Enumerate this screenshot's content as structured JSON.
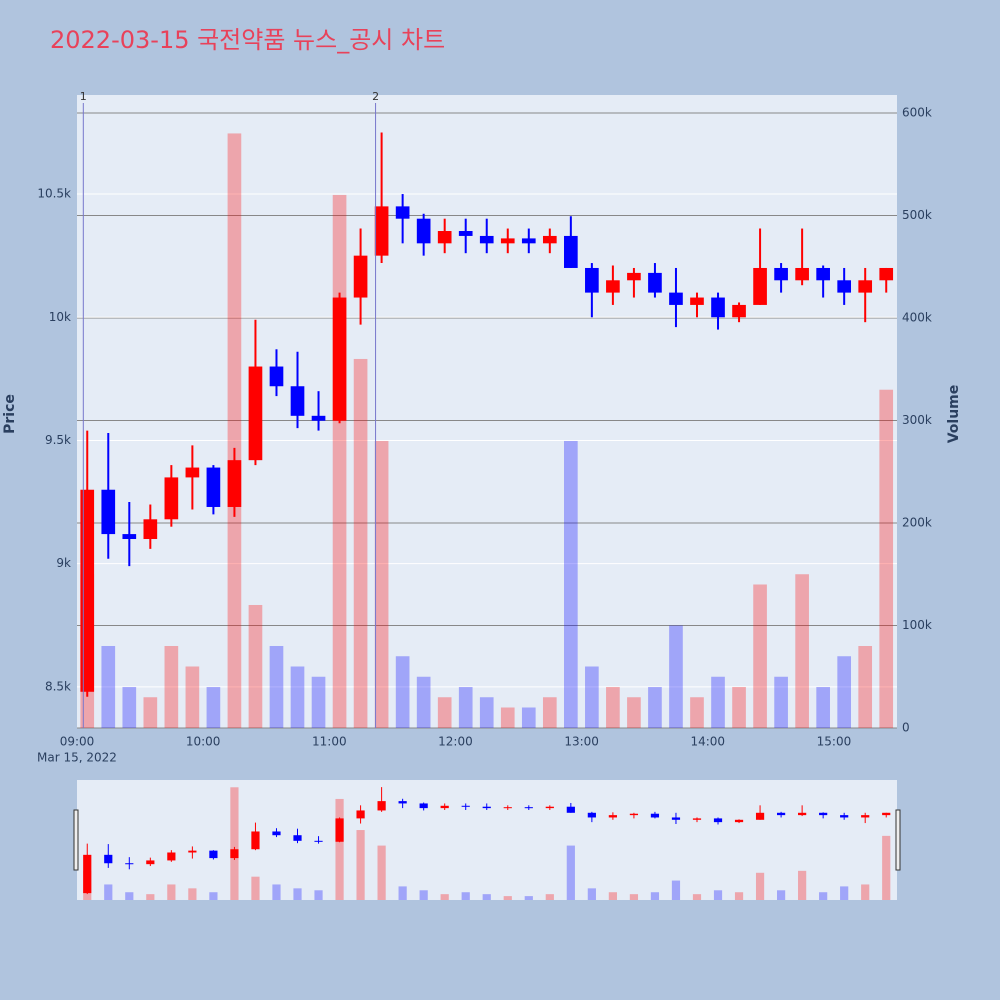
{
  "chart_data": {
    "type": "candlestick",
    "title": "2022-03-15 국전약품 뉴스_공시 차트",
    "x": [
      "09:00",
      "09:10",
      "09:20",
      "09:30",
      "09:40",
      "09:50",
      "10:00",
      "10:10",
      "10:20",
      "10:30",
      "10:40",
      "10:50",
      "11:00",
      "11:10",
      "11:20",
      "11:30",
      "11:40",
      "11:50",
      "12:00",
      "12:10",
      "12:20",
      "12:30",
      "12:40",
      "12:50",
      "13:00",
      "13:10",
      "13:20",
      "13:30",
      "13:40",
      "13:50",
      "14:00",
      "14:10",
      "14:20",
      "14:30",
      "14:40",
      "14:50",
      "15:00",
      "15:10",
      "15:20"
    ],
    "open": [
      8480,
      9300,
      9120,
      9100,
      9180,
      9350,
      9390,
      9230,
      9420,
      9800,
      9720,
      9600,
      9580,
      10080,
      10250,
      10450,
      10400,
      10300,
      10350,
      10330,
      10300,
      10320,
      10300,
      10330,
      10200,
      10100,
      10150,
      10180,
      10100,
      10050,
      10080,
      10000,
      10050,
      10200,
      10150,
      10200,
      10150,
      10100,
      10150
    ],
    "high": [
      9540,
      9530,
      9250,
      9240,
      9400,
      9480,
      9400,
      9470,
      9990,
      9870,
      9860,
      9700,
      10100,
      10360,
      10750,
      10500,
      10420,
      10400,
      10400,
      10400,
      10360,
      10360,
      10360,
      10410,
      10220,
      10210,
      10200,
      10220,
      10200,
      10100,
      10100,
      10060,
      10360,
      10220,
      10360,
      10210,
      10200,
      10200,
      10200
    ],
    "low": [
      8460,
      9020,
      8990,
      9060,
      9150,
      9220,
      9200,
      9190,
      9400,
      9680,
      9550,
      9540,
      9570,
      9970,
      10220,
      10300,
      10250,
      10260,
      10260,
      10260,
      10260,
      10260,
      10260,
      10200,
      10000,
      10050,
      10080,
      10080,
      9960,
      10000,
      9950,
      9980,
      10050,
      10100,
      10130,
      10080,
      10050,
      9980,
      10100
    ],
    "close": [
      9300,
      9120,
      9100,
      9180,
      9350,
      9390,
      9230,
      9420,
      9800,
      9720,
      9600,
      9580,
      10080,
      10250,
      10450,
      10400,
      10300,
      10350,
      10330,
      10300,
      10320,
      10300,
      10330,
      10200,
      10100,
      10150,
      10180,
      10100,
      10050,
      10080,
      10000,
      10050,
      10200,
      10150,
      10200,
      10150,
      10100,
      10150,
      10200
    ],
    "volume": [
      150000,
      80000,
      40000,
      30000,
      80000,
      60000,
      40000,
      580000,
      120000,
      80000,
      60000,
      50000,
      520000,
      360000,
      280000,
      70000,
      50000,
      30000,
      40000,
      30000,
      20000,
      20000,
      30000,
      280000,
      60000,
      40000,
      30000,
      40000,
      100000,
      30000,
      50000,
      40000,
      140000,
      50000,
      150000,
      40000,
      70000,
      80000,
      330000
    ],
    "increasing_color": "#ff0000",
    "decreasing_color": "#0000ff",
    "xlim": [
      "09:00",
      "15:30"
    ],
    "xticks": [
      "09:00",
      "10:00",
      "11:00",
      "12:00",
      "13:00",
      "14:00",
      "15:00"
    ],
    "x_sublabel": "Mar 15, 2022",
    "ylabel": "Price",
    "ylim": [
      8333,
      10902
    ],
    "yticks": [
      {
        "value": 8500,
        "label": "8.5k"
      },
      {
        "value": 9000,
        "label": "9k"
      },
      {
        "value": 9500,
        "label": "9.5k"
      },
      {
        "value": 10000,
        "label": "10k"
      },
      {
        "value": 10500,
        "label": "10.5k"
      }
    ],
    "y2label": "Volume",
    "y2lim": [
      0,
      617500
    ],
    "y2ticks": [
      0,
      {
        "value": 100000,
        "label": "100k"
      },
      {
        "value": 200000,
        "label": "200k"
      },
      {
        "value": 300000,
        "label": "300k"
      },
      {
        "value": 400000,
        "label": "400k"
      },
      {
        "value": 500000,
        "label": "500k"
      },
      {
        "value": 600000,
        "label": "600k"
      }
    ],
    "annotations": [
      {
        "x": "09:03",
        "text": "1"
      },
      {
        "x": "11:22",
        "text": "2"
      }
    ],
    "rangeslider": true
  }
}
